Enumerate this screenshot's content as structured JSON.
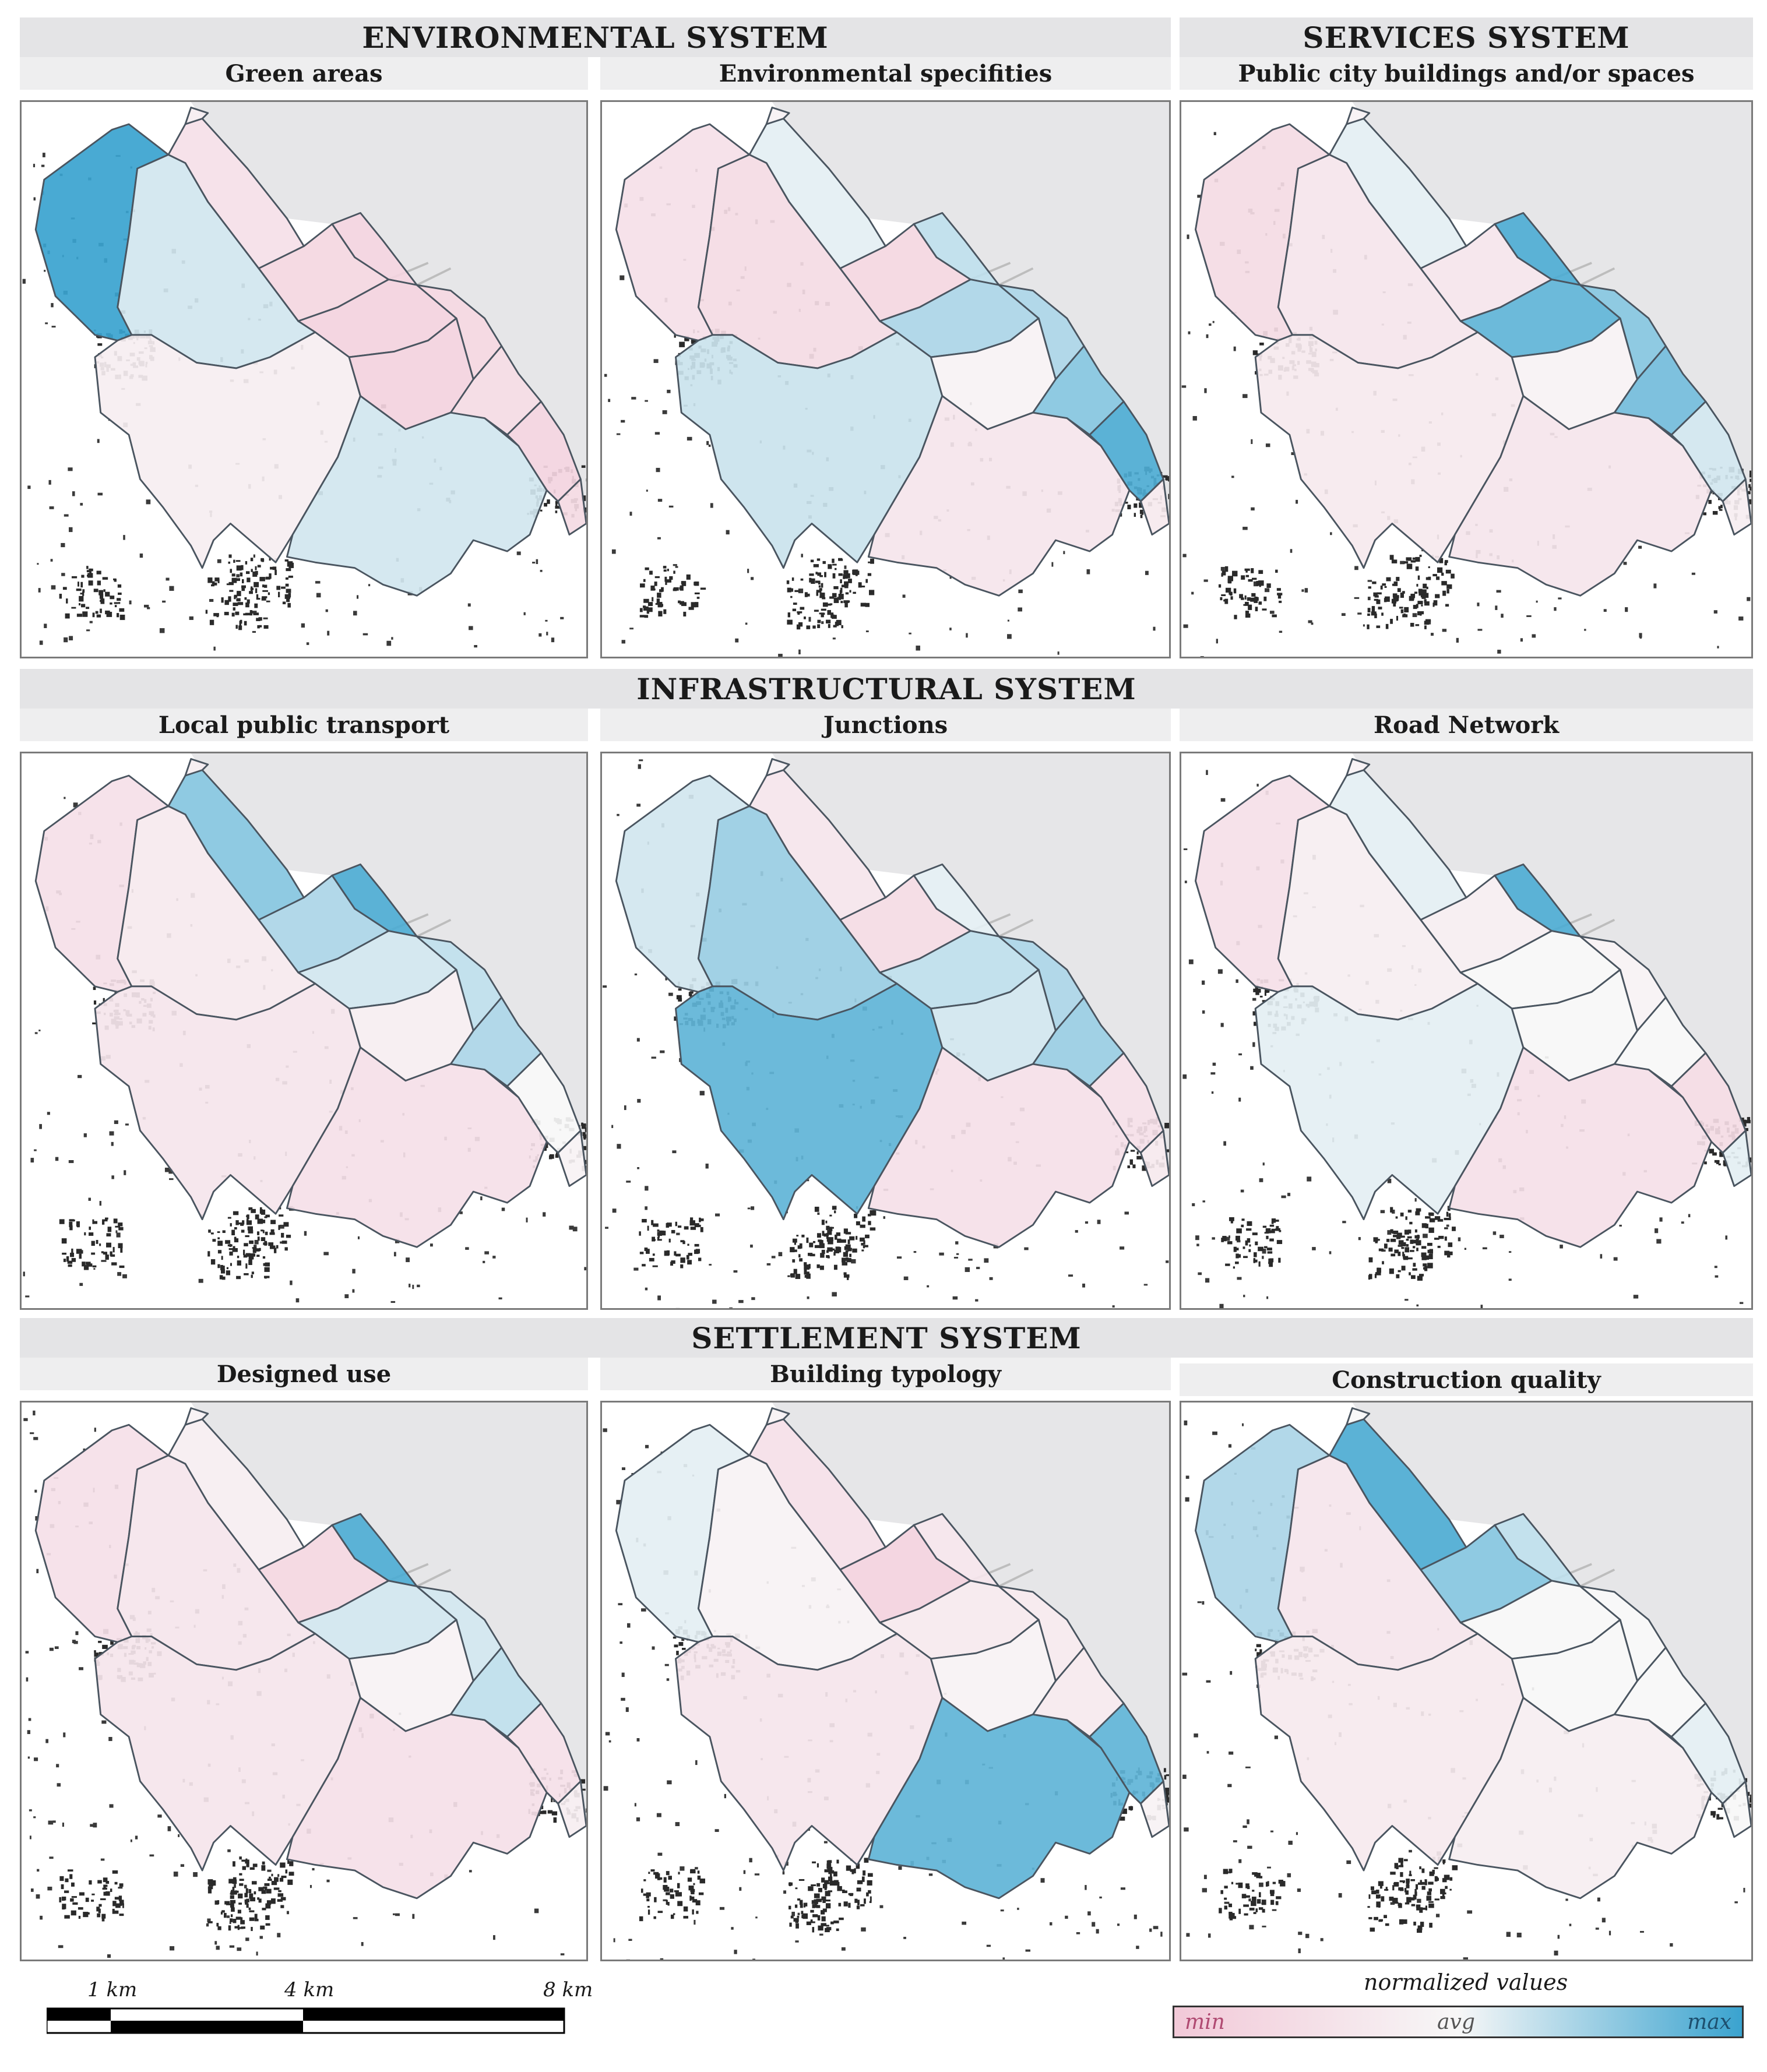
{
  "systems": {
    "environmental": "ENVIRONMENTAL SYSTEM",
    "services": "SERVICES SYSTEM",
    "infrastructural": "INFRASTRUCTURAL SYSTEM",
    "settlement": "SETTLEMENT SYSTEM"
  },
  "panels": [
    {
      "title": "Green areas",
      "values": [
        1.0,
        0.6,
        0.25,
        0.4,
        0.15,
        0.12,
        0.1,
        0.15,
        0.4,
        0.1,
        0.6,
        0.2,
        0.12,
        0.18
      ]
    },
    {
      "title": "Environmental specifities",
      "values": [
        0.25,
        0.2,
        0.55,
        0.45,
        0.15,
        0.65,
        0.7,
        0.7,
        0.62,
        0.45,
        0.3,
        0.8,
        0.95,
        0.35
      ]
    },
    {
      "title": "Public city buildings and/or spaces",
      "values": [
        0.2,
        0.3,
        0.55,
        0.45,
        0.3,
        0.95,
        0.9,
        0.8,
        0.35,
        0.45,
        0.3,
        0.85,
        0.6,
        0.4
      ]
    },
    {
      "title": "Local public transport",
      "values": [
        0.25,
        0.35,
        0.8,
        0.4,
        0.7,
        0.95,
        0.6,
        0.65,
        0.3,
        0.4,
        0.25,
        0.7,
        0.5,
        0.45
      ]
    },
    {
      "title": "Junctions",
      "values": [
        0.6,
        0.75,
        0.3,
        0.45,
        0.2,
        0.55,
        0.65,
        0.7,
        0.9,
        0.6,
        0.25,
        0.75,
        0.25,
        0.35
      ]
    },
    {
      "title": "Road Network",
      "values": [
        0.25,
        0.4,
        0.55,
        0.45,
        0.4,
        0.95,
        0.5,
        0.45,
        0.55,
        0.5,
        0.25,
        0.5,
        0.2,
        0.55
      ]
    },
    {
      "title": "Designed use",
      "values": [
        0.25,
        0.3,
        0.4,
        0.45,
        0.15,
        0.95,
        0.6,
        0.6,
        0.3,
        0.45,
        0.25,
        0.65,
        0.25,
        0.4
      ]
    },
    {
      "title": "Building typology",
      "values": [
        0.55,
        0.45,
        0.25,
        0.45,
        0.1,
        0.3,
        0.35,
        0.35,
        0.3,
        0.45,
        0.9,
        0.35,
        0.9,
        0.45
      ]
    },
    {
      "title": "Construction quality",
      "values": [
        0.7,
        0.3,
        0.95,
        0.5,
        0.8,
        0.65,
        0.5,
        0.5,
        0.35,
        0.5,
        0.4,
        0.5,
        0.55,
        0.5
      ]
    }
  ],
  "scale_bar": {
    "labels": [
      "1 km",
      "4 km",
      "8 km"
    ]
  },
  "legend": {
    "title": "normalized values",
    "min": "min",
    "avg": "avg",
    "max": "max",
    "colors": {
      "min": "#f2c9d8",
      "avg": "#f7f7f7",
      "max": "#3aa3cf"
    }
  }
}
